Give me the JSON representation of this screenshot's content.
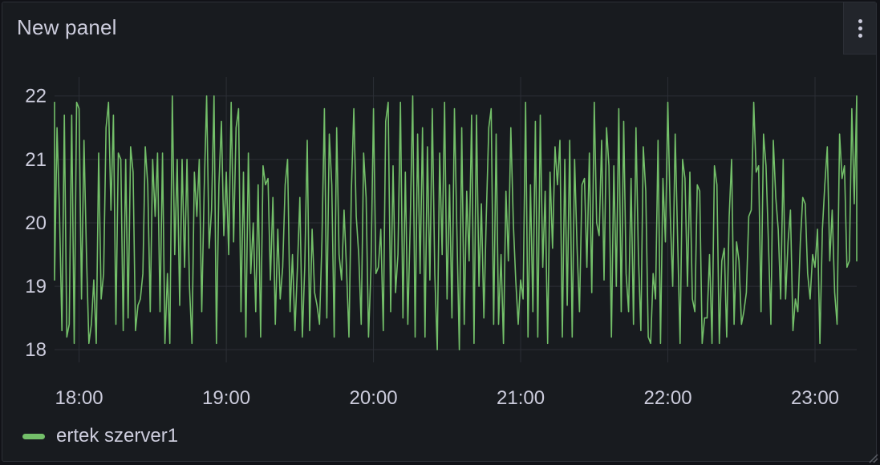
{
  "panel": {
    "title": "New panel",
    "menu_icon": "kebab-vertical-icon"
  },
  "colors": {
    "background": "#181b1f",
    "series": "#73bf69",
    "grid": "#2c2f36",
    "text": "#ccccdc"
  },
  "chart_data": {
    "type": "line",
    "title": "New panel",
    "xlabel": "",
    "ylabel": "",
    "x_range": [
      "17:50",
      "23:17"
    ],
    "ylim": [
      17.8,
      22.3
    ],
    "y_ticks": [
      18,
      19,
      20,
      21,
      22
    ],
    "x_ticks": [
      "18:00",
      "19:00",
      "20:00",
      "21:00",
      "22:00",
      "23:00"
    ],
    "grid": true,
    "legend_position": "bottom-left",
    "sample_interval_minutes": 1,
    "series": [
      {
        "name": "ertek szerver1",
        "start_time": "17:48",
        "values": [
          21.4,
          21.9,
          19.1,
          21.5,
          20.2,
          18.3,
          21.7,
          18.2,
          18.4,
          21.7,
          18.1,
          21.9,
          21.8,
          18.8,
          21.3,
          19.5,
          18.1,
          18.4,
          19.1,
          18.1,
          21.1,
          18.8,
          19.2,
          21.5,
          21.9,
          20.2,
          21.7,
          18.4,
          21.1,
          21.0,
          18.3,
          21.0,
          18.5,
          21.2,
          20.8,
          18.3,
          18.7,
          18.8,
          19.2,
          21.2,
          20.6,
          18.6,
          21.0,
          20.1,
          21.1,
          18.6,
          21.1,
          18.1,
          19.2,
          18.1,
          22.0,
          19.5,
          21.0,
          18.7,
          21.0,
          19.3,
          21.0,
          19.0,
          18.1,
          20.8,
          20.1,
          21.0,
          18.6,
          20.5,
          22.0,
          19.6,
          20.2,
          22.0,
          18.1,
          20.6,
          21.6,
          19.8,
          20.8,
          19.5,
          21.9,
          19.7,
          21.5,
          21.8,
          18.6,
          20.8,
          18.2,
          21.1,
          19.2,
          20.0,
          18.6,
          20.6,
          18.2,
          20.9,
          20.6,
          20.7,
          19.1,
          20.4,
          18.4,
          19.9,
          18.8,
          19.3,
          20.6,
          21.0,
          18.6,
          19.5,
          18.3,
          19.3,
          20.4,
          18.2,
          19.3,
          21.3,
          18.3,
          19.9,
          18.9,
          18.7,
          18.4,
          19.7,
          21.8,
          18.5,
          21.4,
          20.6,
          18.2,
          21.5,
          19.5,
          19.1,
          20.2,
          19.3,
          18.2,
          20.5,
          21.8,
          20.1,
          19.5,
          18.4,
          21.1,
          20.4,
          18.2,
          19.3,
          21.8,
          19.2,
          19.3,
          19.9,
          18.3,
          21.6,
          21.9,
          18.6,
          20.9,
          18.9,
          19.5,
          21.9,
          18.5,
          20.8,
          18.4,
          20.0,
          22.0,
          18.2,
          21.4,
          19.2,
          21.5,
          18.2,
          21.2,
          19.1,
          21.8,
          19.2,
          18.0,
          21.1,
          19.5,
          21.9,
          18.8,
          20.6,
          18.5,
          21.8,
          19.9,
          18.0,
          21.5,
          18.4,
          20.5,
          19.4,
          21.7,
          18.1,
          21.7,
          19.0,
          20.3,
          18.5,
          20.1,
          21.5,
          21.8,
          18.4,
          21.4,
          18.4,
          19.5,
          18.1,
          20.5,
          19.4,
          21.5,
          20.0,
          19.1,
          18.4,
          19.1,
          18.8,
          21.9,
          18.2,
          20.6,
          18.6,
          21.6,
          18.2,
          21.7,
          19.3,
          20.5,
          18.1,
          20.8,
          19.6,
          21.2,
          20.6,
          21.3,
          18.2,
          21.0,
          18.7,
          21.3,
          18.2,
          21.0,
          19.6,
          18.6,
          20.6,
          20.7,
          19.3,
          21.1,
          18.9,
          21.9,
          20.0,
          19.8,
          21.3,
          19.1,
          21.5,
          20.9,
          18.2,
          20.9,
          19.0,
          21.8,
          18.6,
          21.6,
          19.2,
          18.6,
          20.7,
          18.4,
          21.5,
          19.5,
          18.3,
          21.2,
          20.5,
          18.2,
          18.1,
          19.2,
          18.8,
          21.3,
          18.1,
          20.7,
          19.7,
          21.9,
          20.1,
          19.0,
          21.4,
          19.7,
          18.1,
          21.0,
          20.7,
          19.0,
          20.8,
          18.8,
          18.6,
          20.6,
          20.5,
          18.1,
          18.5,
          18.5,
          19.5,
          18.1,
          20.9,
          20.6,
          18.1,
          19.4,
          19.6,
          18.2,
          20.1,
          21.0,
          18.4,
          19.7,
          19.4,
          18.4,
          18.6,
          18.9,
          20.1,
          20.2,
          21.9,
          20.8,
          20.9,
          18.6,
          21.4,
          20.9,
          19.7,
          18.4,
          21.3,
          20.4,
          19.9,
          18.8,
          21.0,
          18.8,
          19.7,
          20.2,
          18.3,
          18.8,
          18.6,
          19.7,
          20.4,
          20.3,
          19.2,
          18.8,
          19.5,
          19.3,
          19.9,
          18.1,
          19.9,
          20.6,
          21.2,
          19.4,
          20.2,
          18.9,
          18.4,
          21.4,
          20.7,
          20.9,
          19.3,
          19.4,
          21.8,
          20.3,
          22.0,
          20.2,
          19.4,
          21.2,
          20.2,
          19.8,
          21.1
        ]
      }
    ]
  },
  "legend": {
    "label": "ertek szerver1"
  }
}
